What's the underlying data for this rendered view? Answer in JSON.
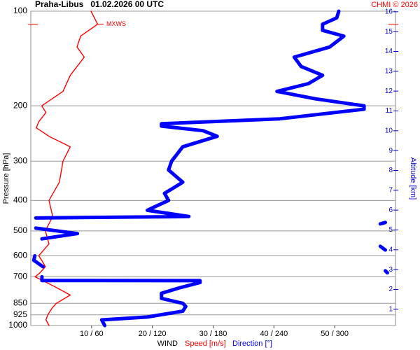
{
  "chart_data": {
    "type": "line",
    "title": "Praha-Libus   01.02.2026 00 UTC",
    "credit": "CHMI © 2026",
    "ylabel": "Pressure [hPa]",
    "y2label": "Altitude [km]",
    "xlabel": "WIND",
    "yscale": "log",
    "ylim": [
      1000,
      100
    ],
    "yticks": [
      100,
      200,
      300,
      400,
      500,
      600,
      700,
      850,
      925,
      1000
    ],
    "y2lim": [
      0.18,
      16.03
    ],
    "y2ticks": [
      1,
      2,
      3,
      4,
      5,
      6,
      7,
      8,
      9,
      10,
      11,
      12,
      13,
      14,
      15,
      16
    ],
    "xlim": [
      0,
      60
    ],
    "x2lim": [
      0,
      360
    ],
    "xticks": [
      {
        "value": 10,
        "label": "10 / 60"
      },
      {
        "value": 20,
        "label": "20 / 120"
      },
      {
        "value": 30,
        "label": "30 / 180"
      },
      {
        "value": 40,
        "label": "40 / 240"
      },
      {
        "value": 50,
        "label": "50 / 300"
      }
    ],
    "grid": true,
    "annotation": {
      "text": "MXWS",
      "pressure": 110
    },
    "series": [
      {
        "name": "Speed [m/s]",
        "color": "#ff0000",
        "axis": "x",
        "y": [
          1000,
          960,
          925,
          880,
          850,
          800,
          750,
          700,
          680,
          650,
          620,
          600,
          550,
          500,
          450,
          400,
          350,
          300,
          270,
          250,
          235,
          225,
          210,
          200,
          180,
          160,
          150,
          140,
          130,
          120,
          110,
          100
        ],
        "values": [
          3,
          2.5,
          2.8,
          3.5,
          4.2,
          6.5,
          3.8,
          0.7,
          1.5,
          2.4,
          1.8,
          1.3,
          3,
          2.4,
          3.6,
          3,
          4.7,
          5.3,
          6.5,
          3,
          0.9,
          1.3,
          2.5,
          1.8,
          5.3,
          6.5,
          7.6,
          8.8,
          7.6,
          8.2,
          11,
          9.9
        ]
      },
      {
        "name": "Direction [°]",
        "color": "#0000ff",
        "axis": "x2",
        "y": [
          1000,
          960,
          940,
          900,
          870,
          850,
          820,
          790,
          760,
          730,
          720,
          719,
          700,
          685,
          680,
          670,
          660,
          650,
          620,
          600,
          580,
          575,
          560,
          540,
          530,
          510,
          490,
          480,
          475,
          470,
          465,
          455,
          450,
          430,
          400,
          380,
          350,
          320,
          300,
          270,
          250,
          240,
          232,
          228,
          220,
          205,
          200,
          190,
          180,
          170,
          160,
          150,
          140,
          130,
          120,
          115,
          110,
          105,
          100
        ],
        "values": [
          73,
          70,
          115,
          150,
          153,
          150,
          129,
          129,
          146,
          167,
          167,
          11,
          11,
          null,
          352,
          350,
          null,
          12,
          3,
          4,
          null,
          350,
          345,
          null,
          11,
          46,
          5,
          null,
          345,
          350,
          null,
          5,
          156,
          115,
          136,
          132,
          150,
          136,
          139,
          150,
          184,
          170,
          129,
          129,
          246,
          329,
          329,
          281,
          243,
          274,
          288,
          267,
          260,
          295,
          309,
          288,
          288,
          302,
          304
        ]
      }
    ]
  }
}
